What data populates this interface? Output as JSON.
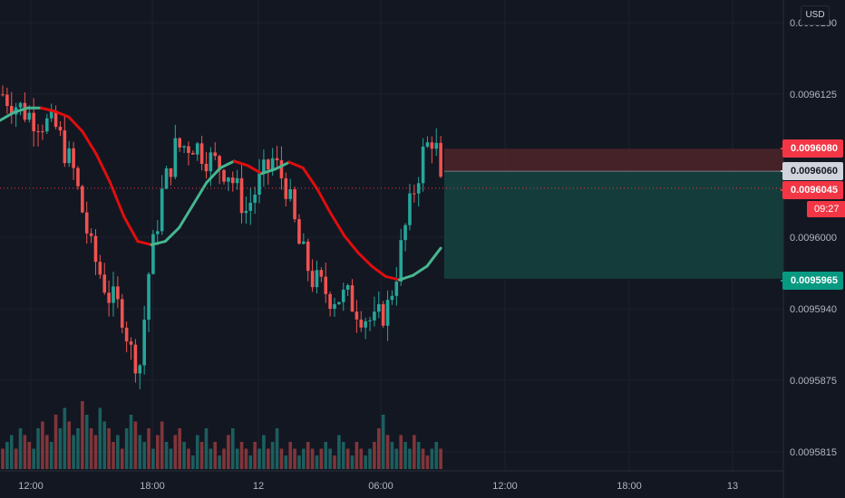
{
  "chart_data": {
    "type": "candlestick",
    "currency": "USD",
    "y_ticks": [
      "0.0096190",
      "0.0096125",
      "0.0096000",
      "0.0095940",
      "0.0095875",
      "0.0095815"
    ],
    "x_ticks": [
      "12:00",
      "18:00",
      "12",
      "06:00",
      "12:00",
      "18:00",
      "13"
    ],
    "ma_series": [
      0.0096105,
      0.0096112,
      0.0096116,
      0.0096116,
      0.0096113,
      0.0096108,
      0.0096095,
      0.0096075,
      0.009605,
      0.009602,
      0.0095998,
      0.0095995,
      0.0095998,
      0.009601,
      0.009603,
      0.009605,
      0.0096063,
      0.0096069,
      0.0096065,
      0.0096058,
      0.0096062,
      0.0096068,
      0.0096063,
      0.0096045,
      0.0096023,
      0.0096003,
      0.0095988,
      0.0095976,
      0.0095967,
      0.0095964,
      0.0095968,
      0.0095976,
      0.0095992
    ],
    "volume_rel": [
      0.3,
      0.4,
      0.5,
      0.3,
      0.6,
      0.5,
      0.4,
      0.3,
      0.6,
      0.7,
      0.5,
      0.4,
      0.8,
      0.6,
      0.9,
      0.7,
      0.5,
      0.6,
      1.0,
      0.8,
      0.6,
      0.5,
      0.9,
      0.7,
      0.6,
      0.4,
      0.5,
      0.3,
      0.6,
      0.8,
      0.7,
      0.5,
      0.4,
      0.6,
      0.3,
      0.5,
      0.7,
      0.4,
      0.3,
      0.5,
      0.6,
      0.4,
      0.3,
      0.2,
      0.5,
      0.4,
      0.6,
      0.3,
      0.4,
      0.2,
      0.3,
      0.5,
      0.6,
      0.3,
      0.4,
      0.3,
      0.2,
      0.4,
      0.3,
      0.5,
      0.3,
      0.4,
      0.6,
      0.3,
      0.2,
      0.4,
      0.3,
      0.2,
      0.3,
      0.4,
      0.3,
      0.2,
      0.3,
      0.4,
      0.3,
      0.2,
      0.5,
      0.4,
      0.3,
      0.2,
      0.4,
      0.3,
      0.2,
      0.3,
      0.4,
      0.6,
      0.8,
      0.5,
      0.4,
      0.3,
      0.5,
      0.4,
      0.3,
      0.5,
      0.4,
      0.3,
      0.2,
      0.3,
      0.4,
      0.3,
      0.2,
      0.4,
      0.3,
      0.5,
      0.4,
      0.3,
      0.2,
      0.3,
      0.4,
      0.2
    ],
    "stop_price": "0.0096080",
    "entry_price": "0.0096060",
    "last_price": "0.0096045",
    "target_price": "0.0095965",
    "countdown": "09:27",
    "colors": {
      "up": "#26a69a",
      "down": "#ef5350",
      "ma_down": "#e00d0d",
      "ma_up": "#46b690",
      "background": "#131722",
      "stop_zone": "#4e2529",
      "target_zone": "#15403e"
    }
  }
}
